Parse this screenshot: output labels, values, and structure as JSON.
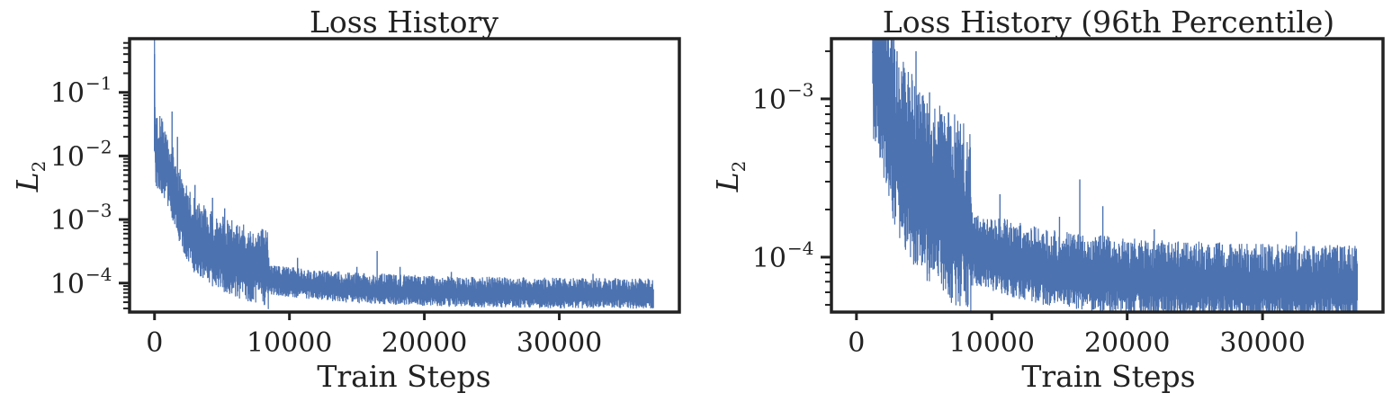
{
  "chart_data": [
    {
      "type": "line",
      "title": "Loss History",
      "xlabel": "Train Steps",
      "ylabel_base": "L",
      "ylabel_sub": "2",
      "yscale": "log",
      "xlim": [
        -1850,
        38900
      ],
      "ylim": [
        3.5e-05,
        0.7
      ],
      "x_ticks": [
        0,
        10000,
        20000,
        30000
      ],
      "y_ticks": [
        {
          "value": 0.1,
          "base": "10",
          "exp": "−1"
        },
        {
          "value": 0.01,
          "base": "10",
          "exp": "−2"
        },
        {
          "value": 0.001,
          "base": "10",
          "exp": "−3"
        },
        {
          "value": 0.0001,
          "base": "10",
          "exp": "−4"
        }
      ],
      "color": "#4c72b0",
      "series": [
        {
          "x": [
            0,
            50,
            100,
            200,
            400,
            700,
            1000,
            1500,
            2000,
            2500,
            3000,
            4000,
            5000,
            6000,
            7000,
            8000,
            8400,
            8500,
            9000,
            10000,
            12000,
            14000,
            16000,
            18000,
            20000,
            22000,
            24000,
            26000,
            28000,
            30000,
            32000,
            34000,
            36000,
            37000
          ],
          "y": [
            0.4,
            0.012,
            0.011,
            0.011,
            0.01,
            0.008,
            0.0055,
            0.0025,
            0.0012,
            0.0007,
            0.0005,
            0.00033,
            0.00025,
            0.00021,
            0.00018,
            0.00016,
            0.00015,
            0.00011,
            0.000105,
            0.0001,
            9e-05,
            8.2e-05,
            7.8e-05,
            7.5e-05,
            7.2e-05,
            7e-05,
            6.9e-05,
            6.8e-05,
            6.7e-05,
            6.6e-05,
            6.6e-05,
            6.5e-05,
            6.5e-05,
            6.5e-05
          ]
        }
      ],
      "spikes": [
        {
          "x": 1300,
          "y": 0.05
        },
        {
          "x": 1700,
          "y": 0.02
        },
        {
          "x": 3000,
          "y": 0.0035
        },
        {
          "x": 4300,
          "y": 0.0022
        },
        {
          "x": 5200,
          "y": 0.0015
        },
        {
          "x": 7800,
          "y": 0.00055
        },
        {
          "x": 10600,
          "y": 0.00025
        },
        {
          "x": 15000,
          "y": 0.00018
        },
        {
          "x": 16500,
          "y": 0.00032
        },
        {
          "x": 18200,
          "y": 0.00018
        },
        {
          "x": 22000,
          "y": 0.00015
        },
        {
          "x": 26000,
          "y": 0.00012
        },
        {
          "x": 32500,
          "y": 0.00014
        }
      ]
    },
    {
      "type": "line",
      "title": "Loss History (96th Percentile)",
      "xlabel": "Train Steps",
      "ylabel_base": "L",
      "ylabel_sub": "2",
      "yscale": "log",
      "xlim": [
        -1850,
        38900
      ],
      "ylim": [
        4.5e-05,
        0.0024
      ],
      "x_ticks": [
        0,
        10000,
        20000,
        30000
      ],
      "y_ticks": [
        {
          "value": 0.001,
          "base": "10",
          "exp": "−3"
        },
        {
          "value": 0.0001,
          "base": "10",
          "exp": "−4"
        }
      ],
      "color": "#4c72b0",
      "series": [
        {
          "x": [
            1200,
            1500,
            2000,
            2500,
            3000,
            3500,
            4000,
            5000,
            6000,
            7000,
            8000,
            8400,
            8500,
            9000,
            10000,
            12000,
            14000,
            16000,
            18000,
            20000,
            22000,
            24000,
            26000,
            28000,
            30000,
            32000,
            34000,
            36000,
            37000
          ],
          "y": [
            0.002,
            0.0017,
            0.0011,
            0.0007,
            0.0005,
            0.0004,
            0.00033,
            0.00025,
            0.00021,
            0.00018,
            0.00016,
            0.00015,
            0.00011,
            0.000105,
            0.0001,
            9e-05,
            8.2e-05,
            7.8e-05,
            7.5e-05,
            7.2e-05,
            7e-05,
            6.9e-05,
            6.8e-05,
            6.7e-05,
            6.6e-05,
            6.6e-05,
            6.5e-05,
            6.5e-05,
            6.5e-05
          ]
        }
      ],
      "spikes": [
        {
          "x": 1700,
          "y": 0.002
        },
        {
          "x": 2100,
          "y": 0.002
        },
        {
          "x": 3000,
          "y": 0.002
        },
        {
          "x": 4400,
          "y": 0.002
        },
        {
          "x": 5400,
          "y": 0.0011
        },
        {
          "x": 6300,
          "y": 0.0008
        },
        {
          "x": 7900,
          "y": 0.0005
        },
        {
          "x": 10600,
          "y": 0.00025
        },
        {
          "x": 15000,
          "y": 0.00018
        },
        {
          "x": 16500,
          "y": 0.00031
        },
        {
          "x": 18200,
          "y": 0.00021
        },
        {
          "x": 22000,
          "y": 0.00015
        },
        {
          "x": 26000,
          "y": 0.00012
        },
        {
          "x": 32500,
          "y": 0.000145
        }
      ]
    }
  ]
}
